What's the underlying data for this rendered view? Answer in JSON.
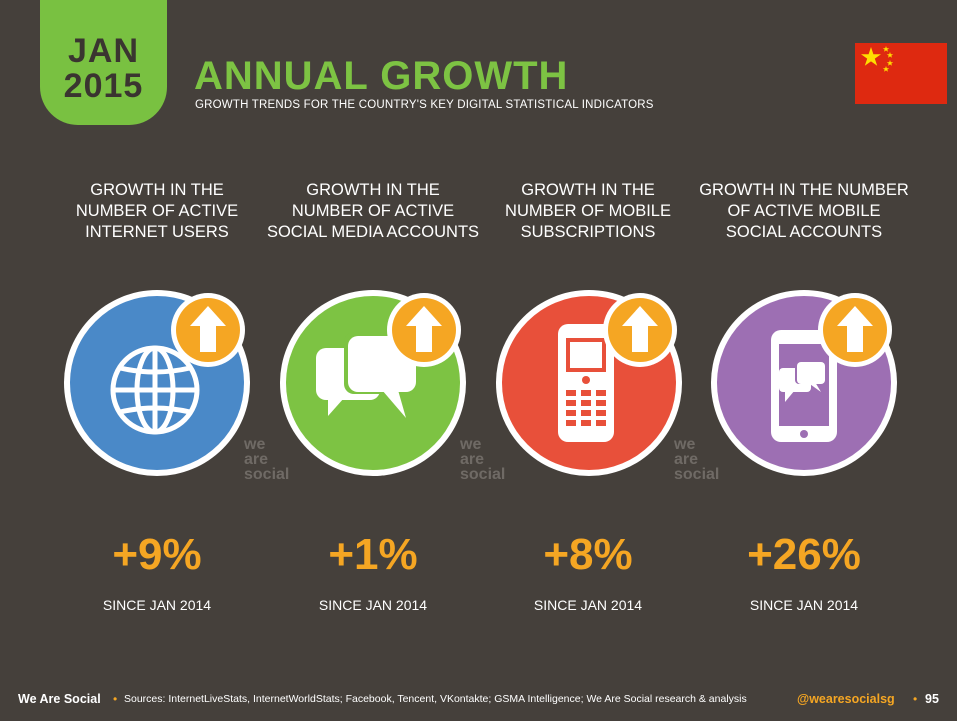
{
  "badge": {
    "month": "JAN",
    "year": "2015"
  },
  "header": {
    "title": "ANNUAL GROWTH",
    "subtitle": "GROWTH TRENDS FOR THE COUNTRY'S KEY DIGITAL STATISTICAL INDICATORS",
    "flag_icon": "china-flag"
  },
  "colors": {
    "background": "#45403b",
    "badge": "#79c141",
    "title": "#7dc343",
    "accent": "#f5a623",
    "internet": "#4a89c8",
    "social": "#7dc343",
    "mobile": "#e8503a",
    "mobile_social": "#9d6fb3"
  },
  "columns": [
    {
      "heading": [
        "GROWTH IN THE",
        "NUMBER OF ACTIVE",
        "INTERNET USERS"
      ],
      "icon": "globe-icon",
      "value": "+9%",
      "since": "SINCE JAN 2014"
    },
    {
      "heading": [
        "GROWTH IN THE",
        "NUMBER OF ACTIVE",
        "SOCIAL MEDIA ACCOUNTS"
      ],
      "icon": "chat-bubbles-icon",
      "value": "+1%",
      "since": "SINCE JAN 2014"
    },
    {
      "heading": [
        "GROWTH IN THE",
        "NUMBER OF MOBILE",
        "SUBSCRIPTIONS"
      ],
      "icon": "mobile-phone-icon",
      "value": "+8%",
      "since": "SINCE JAN 2014"
    },
    {
      "heading": [
        "GROWTH IN THE NUMBER",
        "OF ACTIVE MOBILE",
        "SOCIAL ACCOUNTS"
      ],
      "icon": "smartphone-chat-icon",
      "value": "+26%",
      "since": "SINCE JAN 2014"
    }
  ],
  "watermark": [
    "we",
    "are",
    "social"
  ],
  "footer": {
    "brand": "We Are Social",
    "bullet": "•",
    "sources": "Sources: InternetLiveStats, InternetWorldStats; Facebook, Tencent, VKontakte; GSMA Intelligence; We Are Social research & analysis",
    "handle": "@wearesocialsg",
    "page": "95"
  }
}
